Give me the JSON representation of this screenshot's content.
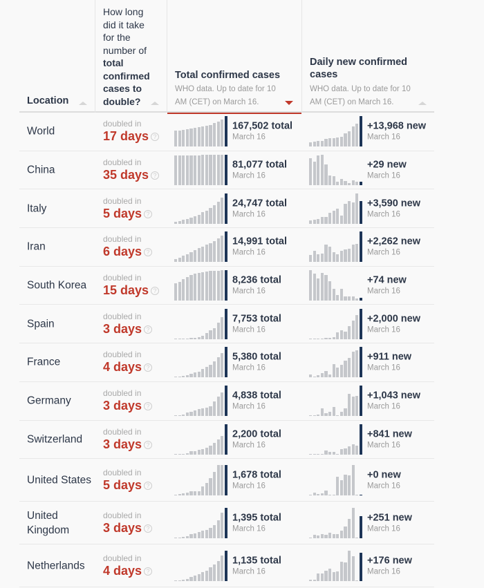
{
  "header": {
    "location": "Location",
    "doubling_question_prefix": "How long did it take for the number of",
    "doubling_question_bold": "total confirmed cases to double?",
    "total_title": "Total confirmed cases",
    "total_sub": "WHO data. Up to date for 10 AM (CET) on March 16.",
    "new_title": "Daily new confirmed cases",
    "new_sub": "WHO data. Up to date for 10 AM (CET) on March 16.",
    "sorted_column": "total",
    "sort_direction": "descending"
  },
  "labels": {
    "doubled_in": "doubled in",
    "help_icon": "?"
  },
  "colors": {
    "accent_red": "#c0392b",
    "highlight_bar": "#1d3557",
    "bar": "#c5c7cb"
  },
  "chart_data": {
    "type": "table",
    "title": "COVID-19 confirmed cases by country",
    "date": "March 16",
    "sparkline_note": "Each sparkline has 14 daily bars; values are relative heights (fraction of row max) estimated from pixels; last bar is highlighted (March 16).",
    "rows": [
      {
        "location": "World",
        "doubling": "17 days",
        "total": "167,502 total",
        "new": "+13,968 new",
        "date": "March 16",
        "total_spark": [
          0.52,
          0.54,
          0.56,
          0.58,
          0.6,
          0.62,
          0.64,
          0.66,
          0.68,
          0.72,
          0.77,
          0.83,
          0.9,
          1.0
        ],
        "new_spark": [
          0.14,
          0.16,
          0.18,
          0.2,
          0.26,
          0.27,
          0.28,
          0.3,
          0.32,
          0.45,
          0.5,
          0.66,
          0.75,
          1.0
        ]
      },
      {
        "location": "China",
        "doubling": "35 days",
        "total": "81,077 total",
        "new": "+29 new",
        "date": "March 16",
        "total_spark": [
          0.97,
          0.97,
          0.97,
          0.97,
          0.98,
          0.98,
          0.98,
          0.99,
          0.99,
          0.99,
          0.99,
          1.0,
          1.0,
          1.0
        ],
        "new_spark": [
          0.88,
          0.78,
          0.98,
          1.0,
          0.68,
          0.33,
          0.3,
          0.12,
          0.2,
          0.14,
          0.06,
          0.16,
          0.12,
          0.12
        ]
      },
      {
        "location": "Italy",
        "doubling": "5 days",
        "total": "24,747 total",
        "new": "+3,590 new",
        "date": "March 16",
        "total_spark": [
          0.07,
          0.09,
          0.12,
          0.15,
          0.19,
          0.24,
          0.3,
          0.37,
          0.43,
          0.52,
          0.6,
          0.72,
          0.86,
          1.0
        ],
        "new_spark": [
          0.1,
          0.13,
          0.16,
          0.23,
          0.23,
          0.35,
          0.42,
          0.5,
          0.27,
          0.65,
          0.75,
          0.7,
          1.0,
          0.75
        ]
      },
      {
        "location": "Iran",
        "doubling": "6 days",
        "total": "14,991 total",
        "new": "+2,262 new",
        "date": "March 16",
        "total_spark": [
          0.1,
          0.15,
          0.21,
          0.27,
          0.33,
          0.4,
          0.46,
          0.51,
          0.57,
          0.63,
          0.7,
          0.78,
          0.88,
          1.0
        ],
        "new_spark": [
          0.23,
          0.37,
          0.27,
          0.28,
          0.58,
          0.5,
          0.32,
          0.27,
          0.38,
          0.43,
          0.45,
          0.58,
          0.6,
          1.0
        ]
      },
      {
        "location": "South Korea",
        "doubling": "15 days",
        "total": "8,236 total",
        "new": "+74 new",
        "date": "March 16",
        "total_spark": [
          0.57,
          0.62,
          0.7,
          0.78,
          0.84,
          0.89,
          0.92,
          0.94,
          0.96,
          0.97,
          0.98,
          0.99,
          1.0,
          1.0
        ],
        "new_spark": [
          1.0,
          0.88,
          0.72,
          0.92,
          0.85,
          0.65,
          0.38,
          0.18,
          0.38,
          0.14,
          0.14,
          0.14,
          0.06,
          0.09
        ]
      },
      {
        "location": "Spain",
        "doubling": "3 days",
        "total": "7,753 total",
        "new": "+2,000 new",
        "date": "March 16",
        "total_spark": [
          0.01,
          0.01,
          0.02,
          0.02,
          0.03,
          0.05,
          0.06,
          0.12,
          0.2,
          0.28,
          0.37,
          0.55,
          0.72,
          1.0
        ],
        "new_spark": [
          0.01,
          0.01,
          0.02,
          0.02,
          0.04,
          0.03,
          0.07,
          0.22,
          0.28,
          0.24,
          0.42,
          0.62,
          0.78,
          1.0
        ]
      },
      {
        "location": "France",
        "doubling": "4 days",
        "total": "5,380 total",
        "new": "+911 new",
        "date": "March 16",
        "total_spark": [
          0.02,
          0.03,
          0.05,
          0.08,
          0.12,
          0.16,
          0.2,
          0.28,
          0.35,
          0.43,
          0.54,
          0.66,
          0.8,
          1.0
        ],
        "new_spark": [
          0.1,
          0.01,
          0.07,
          0.15,
          0.22,
          0.1,
          0.45,
          0.32,
          0.42,
          0.55,
          0.65,
          0.85,
          0.9,
          1.0
        ]
      },
      {
        "location": "Germany",
        "doubling": "3 days",
        "total": "4,838 total",
        "new": "+1,043 new",
        "date": "March 16",
        "total_spark": [
          0.01,
          0.02,
          0.05,
          0.12,
          0.15,
          0.18,
          0.22,
          0.25,
          0.28,
          0.33,
          0.48,
          0.64,
          0.78,
          1.0
        ],
        "new_spark": [
          0.02,
          0.02,
          0.05,
          0.25,
          0.1,
          0.15,
          0.3,
          0.03,
          0.15,
          0.25,
          0.72,
          0.65,
          0.67,
          1.0
        ]
      },
      {
        "location": "Switzerland",
        "doubling": "3 days",
        "total": "2,200 total",
        "new": "+841 new",
        "date": "March 16",
        "total_spark": [
          0.01,
          0.01,
          0.02,
          0.04,
          0.1,
          0.12,
          0.15,
          0.18,
          0.23,
          0.3,
          0.38,
          0.5,
          0.62,
          1.0
        ],
        "new_spark": [
          0.01,
          0.01,
          0.01,
          0.02,
          0.13,
          0.08,
          0.08,
          0.01,
          0.18,
          0.19,
          0.27,
          0.33,
          0.29,
          1.0
        ]
      },
      {
        "location": "United States",
        "doubling": "5 days",
        "total": "1,678 total",
        "new": "+0 new",
        "date": "March 16",
        "total_spark": [
          0.02,
          0.04,
          0.06,
          0.09,
          0.12,
          0.12,
          0.12,
          0.28,
          0.4,
          0.57,
          0.76,
          1.0,
          1.0,
          1.0
        ],
        "new_spark": [
          0.02,
          0.08,
          0.05,
          0.06,
          0.15,
          0.01,
          0.01,
          0.6,
          0.5,
          0.68,
          0.65,
          1.0,
          0.0,
          0.02
        ]
      },
      {
        "location": "United Kingdom",
        "doubling": "3 days",
        "total": "1,395 total",
        "new": "+251 new",
        "date": "March 16",
        "total_spark": [
          0.01,
          0.02,
          0.04,
          0.07,
          0.12,
          0.16,
          0.2,
          0.25,
          0.27,
          0.33,
          0.42,
          0.58,
          0.83,
          1.0
        ],
        "new_spark": [
          0.01,
          0.1,
          0.08,
          0.13,
          0.1,
          0.17,
          0.13,
          0.14,
          0.25,
          0.38,
          0.62,
          1.0,
          0.0,
          0.72
        ]
      },
      {
        "location": "Netherlands",
        "doubling": "4 days",
        "total": "1,135 total",
        "new": "+176 new",
        "date": "March 16",
        "total_spark": [
          0.01,
          0.02,
          0.04,
          0.07,
          0.12,
          0.17,
          0.23,
          0.3,
          0.34,
          0.45,
          0.55,
          0.65,
          0.84,
          1.0
        ],
        "new_spark": [
          0.03,
          0.04,
          0.25,
          0.25,
          0.33,
          0.41,
          0.3,
          0.32,
          0.64,
          0.6,
          1.0,
          0.82,
          0.0,
          0.93
        ]
      }
    ]
  }
}
